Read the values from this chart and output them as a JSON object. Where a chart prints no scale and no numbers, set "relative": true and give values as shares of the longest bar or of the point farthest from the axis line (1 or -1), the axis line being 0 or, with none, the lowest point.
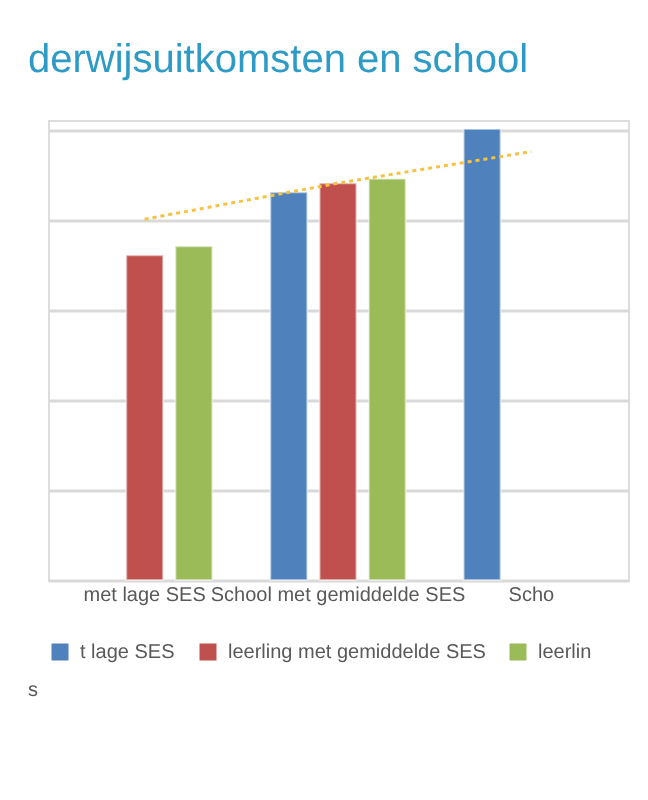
{
  "chart_data": {
    "type": "bar",
    "title": "derwijsuitkomsten en school",
    "categories": [
      "met lage SES",
      "School met gemiddelde SES",
      "Scho"
    ],
    "relative": true,
    "grid": "y",
    "legend": "bottom",
    "series": [
      {
        "name": "t lage SES",
        "color": "#4f81bd",
        "values": [
          null,
          0.86,
          1
        ]
      },
      {
        "name": "leerling met gemiddelde SES",
        "color": "#c0504d",
        "values": [
          0.72,
          0.88,
          null
        ]
      },
      {
        "name": "leerlin",
        "color": "#9bbb59",
        "values": [
          0.74,
          0.89,
          null
        ]
      },
      {
        "type": "line",
        "color": "#f5c242",
        "values": [
          0.8,
          0.88,
          0.95
        ],
        "line_style": "dotted",
        "marker": "none"
      }
    ],
    "annotations": [
      "s"
    ]
  }
}
